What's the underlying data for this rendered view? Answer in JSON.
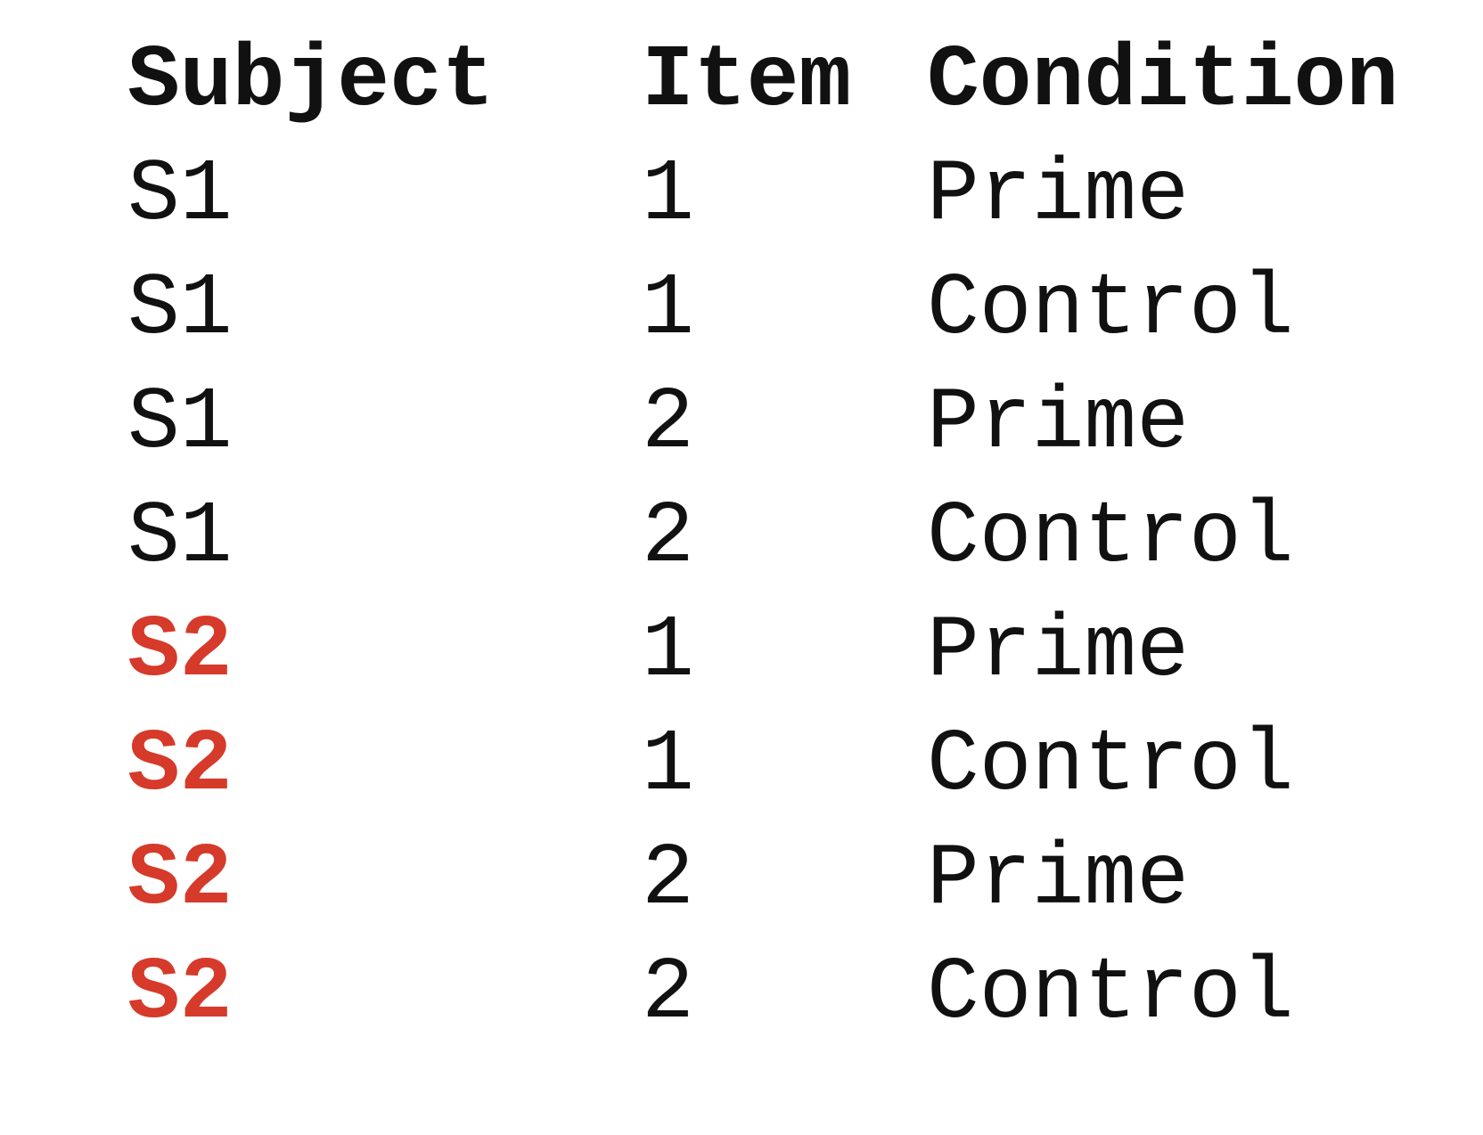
{
  "table": {
    "headers": [
      "Subject",
      "Item",
      "Condition"
    ],
    "highlight_color": "#d63a2a",
    "text_color": "#111111",
    "rows": [
      {
        "subject": "S1",
        "item": "1",
        "condition": "Prime",
        "highlighted": false
      },
      {
        "subject": "S1",
        "item": "1",
        "condition": "Control",
        "highlighted": false
      },
      {
        "subject": "S1",
        "item": "2",
        "condition": "Prime",
        "highlighted": false
      },
      {
        "subject": "S1",
        "item": "2",
        "condition": "Control",
        "highlighted": false
      },
      {
        "subject": "S2",
        "item": "1",
        "condition": "Prime",
        "highlighted": true
      },
      {
        "subject": "S2",
        "item": "1",
        "condition": "Control",
        "highlighted": true
      },
      {
        "subject": "S2",
        "item": "2",
        "condition": "Prime",
        "highlighted": true
      },
      {
        "subject": "S2",
        "item": "2",
        "condition": "Control",
        "highlighted": true
      }
    ]
  }
}
